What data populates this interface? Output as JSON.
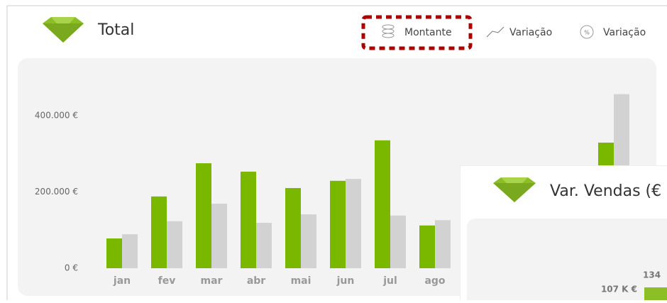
{
  "header": {
    "title": "Total"
  },
  "toggles": [
    "Montante",
    "Variação",
    "Variação"
  ],
  "chart_data": {
    "type": "bar",
    "categories": [
      "jan",
      "fev",
      "mar",
      "abr",
      "mai",
      "jun",
      "jul",
      "ago",
      null,
      null,
      null,
      null
    ],
    "series": [
      {
        "color": "#7ab800",
        "values": [
          78000,
          188000,
          275000,
          253000,
          210000,
          229000,
          335000,
          112000,
          null,
          null,
          null,
          329000
        ]
      },
      {
        "color": "#d2d2d2",
        "values": [
          89000,
          123000,
          169000,
          119000,
          141000,
          234000,
          138000,
          126000,
          null,
          null,
          null,
          456000
        ]
      }
    ],
    "ylim": [
      0,
      500000
    ],
    "yticks": [
      {
        "value": 0,
        "label": "0 €"
      },
      {
        "value": 200000,
        "label": "200.000 €"
      },
      {
        "value": 400000,
        "label": "400.000 €"
      }
    ],
    "grid": false
  },
  "popup": {
    "title": "Var. Vendas (€",
    "value_label": "107 K €",
    "bar_label": "134"
  }
}
